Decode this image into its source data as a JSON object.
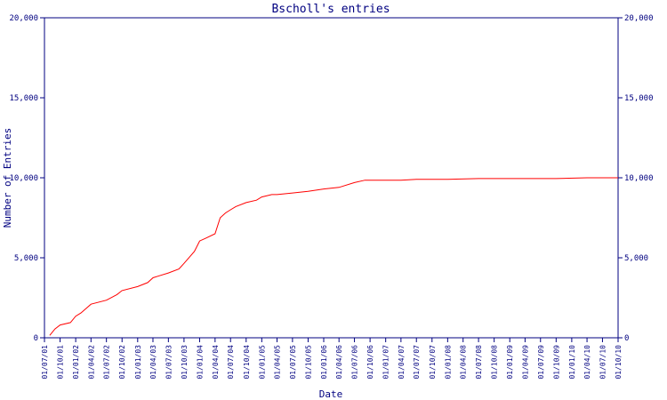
{
  "chart_data": {
    "type": "line",
    "title": "Bscholl's entries",
    "xlabel": "Date",
    "ylabel": "Number of Entries",
    "ylim": [
      0,
      20000
    ],
    "yticks": [
      {
        "value": 0,
        "label": "0"
      },
      {
        "value": 5000,
        "label": "5,000"
      },
      {
        "value": 10000,
        "label": "10,000"
      },
      {
        "value": 15000,
        "label": "15,000"
      },
      {
        "value": 20000,
        "label": "20,000"
      }
    ],
    "xtick_labels": [
      "01/07/01",
      "01/10/01",
      "01/01/02",
      "01/04/02",
      "01/07/02",
      "01/10/02",
      "01/01/03",
      "01/04/03",
      "01/07/03",
      "01/10/03",
      "01/01/04",
      "01/04/04",
      "01/07/04",
      "01/10/04",
      "01/01/05",
      "01/04/05",
      "01/07/05",
      "01/10/05",
      "01/01/06",
      "01/04/06",
      "01/07/06",
      "01/10/06",
      "01/01/07",
      "01/04/07",
      "01/07/07",
      "01/10/07",
      "01/01/08",
      "01/04/08",
      "01/07/08",
      "01/10/08",
      "01/01/09",
      "01/04/09",
      "01/07/09",
      "01/10/09",
      "01/01/10",
      "01/04/10",
      "01/07/10",
      "01/10/10"
    ],
    "grid": false,
    "colors": {
      "line": "#ff0000",
      "axis": "#000080",
      "text": "#000080"
    },
    "series": [
      {
        "x": [
          "2001-08-01",
          "2001-09-01",
          "2001-10-01",
          "2001-12-01",
          "2002-01-01",
          "2002-02-01",
          "2002-04-01",
          "2002-07-01",
          "2002-09-01",
          "2002-10-01",
          "2003-01-01",
          "2003-03-01",
          "2003-04-01",
          "2003-05-01",
          "2003-07-01",
          "2003-09-01",
          "2003-10-01",
          "2003-12-01",
          "2004-01-01",
          "2004-02-01",
          "2004-04-01",
          "2004-05-01",
          "2004-06-01",
          "2004-07-01",
          "2004-08-01",
          "2004-10-01",
          "2004-12-01",
          "2005-01-01",
          "2005-03-01",
          "2005-04-01",
          "2005-07-01",
          "2005-10-01",
          "2006-01-01",
          "2006-04-01",
          "2006-07-01",
          "2006-09-01",
          "2007-01-01",
          "2007-04-01",
          "2007-07-01",
          "2008-01-01",
          "2008-07-01",
          "2009-01-01",
          "2009-10-01",
          "2010-04-01",
          "2010-10-01"
        ],
        "values": [
          150,
          550,
          800,
          950,
          1350,
          1550,
          2100,
          2350,
          2700,
          2950,
          3200,
          3450,
          3750,
          3850,
          4050,
          4300,
          4650,
          5400,
          6050,
          6200,
          6500,
          7500,
          7800,
          8000,
          8200,
          8450,
          8600,
          8800,
          8950,
          8950,
          9050,
          9150,
          9300,
          9400,
          9700,
          9850,
          9850,
          9850,
          9900,
          9900,
          9950,
          9950,
          9950,
          10000,
          10000
        ]
      }
    ]
  }
}
